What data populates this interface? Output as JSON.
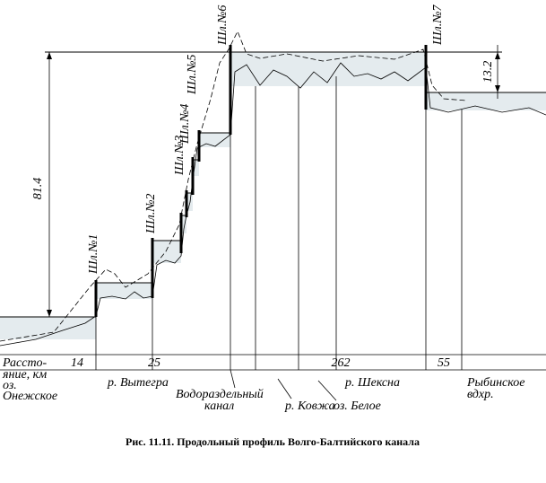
{
  "dimensions": {
    "total_head": 81.4,
    "final_head": 13.2
  },
  "locks": [
    "Шл.№1",
    "Шл.№2",
    "Шл.№3",
    "Шл.№4",
    "Шл.№5",
    "Шл.№6",
    "Шл.№7"
  ],
  "distance_row": {
    "label_lines": [
      "Рассто-",
      "яние, км"
    ],
    "segments": [
      14,
      25,
      262,
      55
    ]
  },
  "places": [
    {
      "lines": [
        "оз.",
        "Онежское"
      ]
    },
    {
      "lines": [
        "р. Вытегра"
      ]
    },
    {
      "lines": [
        "Водораздельный",
        "канал"
      ]
    },
    {
      "lines": [
        "р. Ковжа"
      ]
    },
    {
      "lines": [
        "оз. Белое"
      ]
    },
    {
      "lines": [
        "р. Шексна"
      ]
    },
    {
      "lines": [
        "Рыбинское",
        "вдхр."
      ]
    }
  ],
  "caption": "Рис. 11.11. Продольный профиль Волго-Балтийского канала"
}
